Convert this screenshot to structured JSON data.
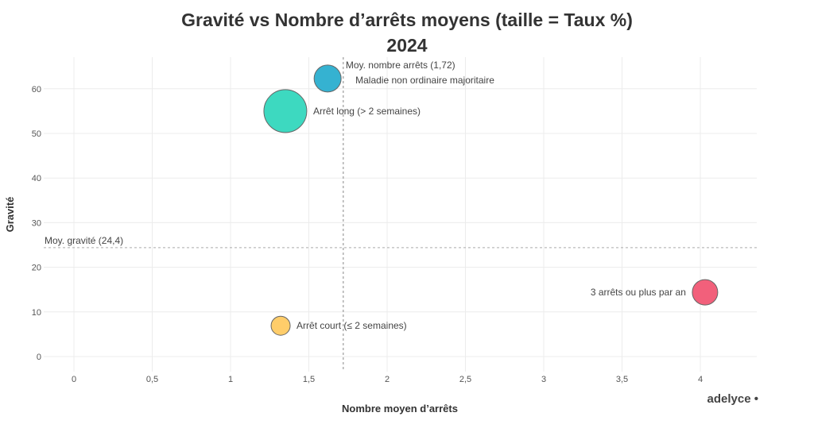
{
  "chart_data": {
    "type": "scatter",
    "subtype": "bubble",
    "title": "Gravité vs Nombre d’arrêts moyens (taille = Taux %)",
    "subtitle": "2024",
    "xlabel": "Nombre moyen d’arrêts",
    "ylabel": "Gravité",
    "xlim": [
      -0.2,
      4.35
    ],
    "ylim": [
      -2,
      68
    ],
    "x_ticks": [
      "0",
      "0,5",
      "1",
      "1,5",
      "2",
      "2,5",
      "3",
      "3,5",
      "4"
    ],
    "x_tick_values": [
      0,
      0.5,
      1,
      1.5,
      2,
      2.5,
      3,
      3.5,
      4
    ],
    "y_ticks": [
      "0",
      "10",
      "20",
      "30",
      "40",
      "50",
      "60"
    ],
    "y_tick_values": [
      0,
      10,
      20,
      30,
      40,
      50,
      60
    ],
    "grid": true,
    "legend": "none",
    "points": [
      {
        "label": "Maladie non ordinaire majoritaire",
        "x": 1.62,
        "y": 62.3,
        "size": 17,
        "color": "#35B2D1"
      },
      {
        "label": "Arrêt long (> 2 semaines)",
        "x": 1.35,
        "y": 55.0,
        "size": 27,
        "color": "#3DD9C0"
      },
      {
        "label": "3 arrêts ou plus par an",
        "x": 4.03,
        "y": 14.4,
        "size": 16,
        "color": "#F2607B"
      },
      {
        "label": "Arrêt court (≤ 2 semaines)",
        "x": 1.32,
        "y": 6.9,
        "size": 12,
        "color": "#FFCD6A"
      }
    ],
    "reference_lines": [
      {
        "axis": "x",
        "value": 1.72,
        "label": "Moy. nombre arrêts (1,72)"
      },
      {
        "axis": "y",
        "value": 24.4,
        "label": "Moy. gravité (24,4)"
      }
    ]
  },
  "branding": {
    "logo": "adelyce •"
  }
}
